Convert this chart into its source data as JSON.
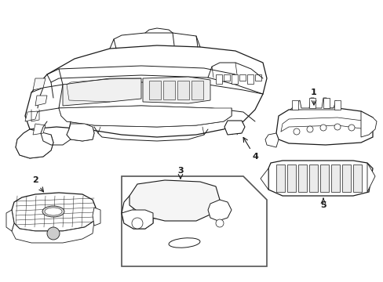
{
  "background_color": "#ffffff",
  "line_color": "#1a1a1a",
  "label_color": "#000000",
  "figsize": [
    4.89,
    3.6
  ],
  "dpi": 100,
  "border_color": "#555555"
}
